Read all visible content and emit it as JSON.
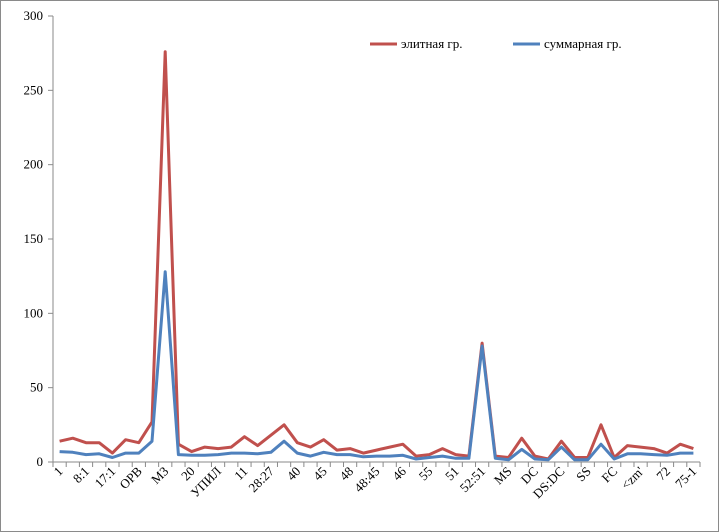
{
  "chart_data": {
    "type": "line",
    "title": "",
    "xlabel": "",
    "ylabel": "",
    "ylim": [
      0,
      300
    ],
    "yticks": [
      0,
      50,
      100,
      150,
      200,
      250,
      300
    ],
    "grid": false,
    "legend_position": "top-right",
    "categories": [
      "1",
      "",
      "8:1",
      "",
      "17:1",
      "",
      "OPB",
      "",
      "M3",
      "",
      "20",
      "",
      "УПИЛ",
      "",
      "11",
      "",
      "28:27",
      "",
      "40",
      "",
      "45",
      "",
      "48",
      "",
      "48:45",
      "",
      "46",
      "",
      "55",
      "",
      "51",
      "",
      "52:51",
      "",
      "MS",
      "",
      "DC",
      "",
      "DS:DC",
      "",
      "SS",
      "",
      "FC",
      "",
      "<zm'",
      "",
      "72",
      "",
      "75-1"
    ],
    "series": [
      {
        "name": "элитная гр.",
        "color": "#c0504d",
        "values": [
          14,
          16,
          13,
          13,
          6,
          15,
          13,
          27,
          276,
          12,
          7,
          10,
          9,
          10,
          17,
          11,
          18,
          25,
          13,
          10,
          15,
          8,
          9,
          6,
          8,
          10,
          12,
          4,
          5,
          9,
          5,
          4,
          80,
          4,
          3,
          16,
          4,
          2,
          14,
          3,
          3,
          25,
          3,
          11,
          10,
          9,
          6,
          12,
          9
        ]
      },
      {
        "name": "суммарная гр.",
        "color": "#4f81bd",
        "values": [
          7,
          6.5,
          5,
          5.5,
          3,
          6,
          6,
          14,
          128,
          5,
          4.5,
          4.5,
          5,
          6,
          6,
          5.5,
          6.5,
          14,
          6,
          4,
          6.5,
          5,
          5,
          3.5,
          4,
          4,
          4.5,
          2,
          3,
          4,
          2.5,
          2.5,
          78,
          2.5,
          1.5,
          8.5,
          2,
          1.5,
          10,
          1.5,
          1.5,
          12,
          2,
          5.5,
          5.5,
          5,
          4.5,
          6,
          6
        ]
      }
    ]
  }
}
